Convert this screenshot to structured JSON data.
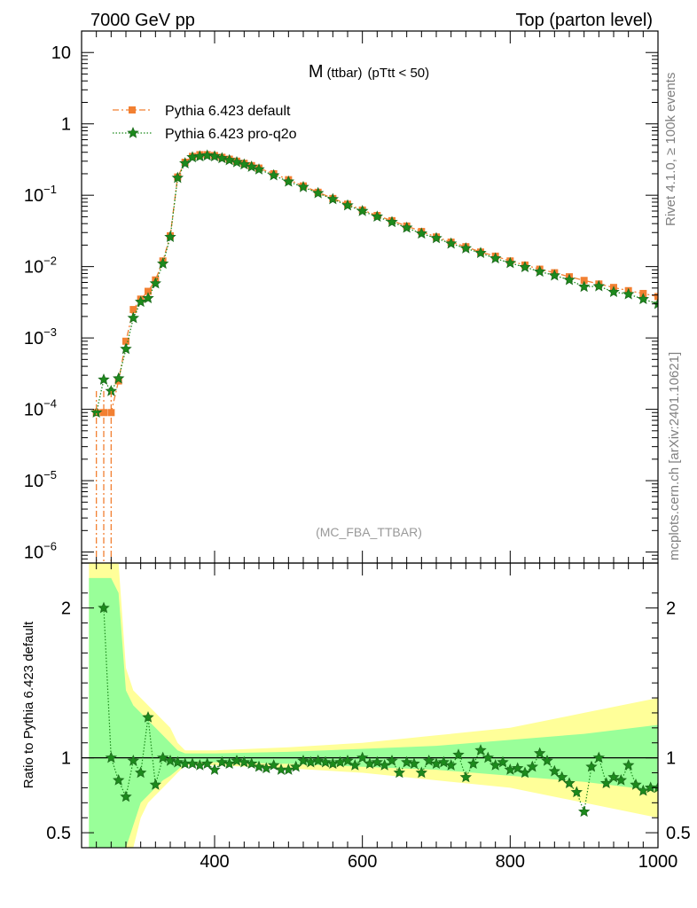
{
  "header": {
    "left": "7000 GeV pp",
    "right": "Top (parton level)"
  },
  "side_labels": {
    "rivet": "Rivet 4.1.0, ≥ 100k events",
    "mcplots": "mcplots.cern.ch [arXiv:2401.10621]"
  },
  "colors": {
    "default": "#f28032",
    "proq2o": "#1c8a1c",
    "band_yellow": "#ffff99",
    "band_green": "#99ff99"
  },
  "chart_data": [
    {
      "type": "line",
      "name": "main",
      "title_main": "M",
      "title_sub": "(ttbar)",
      "title_cut": "(pTtt < 50)",
      "watermark": "(MC_FBA_TTBAR)",
      "yscale": "log",
      "xlim": [
        220,
        1000
      ],
      "ylim": [
        7e-07,
        20
      ],
      "y_ticks": [
        {
          "v": 10,
          "label": "10",
          "exp": ""
        },
        {
          "v": 1,
          "label": "1",
          "exp": ""
        },
        {
          "v": 0.1,
          "label": "10",
          "exp": "−1"
        },
        {
          "v": 0.01,
          "label": "10",
          "exp": "−2"
        },
        {
          "v": 0.001,
          "label": "10",
          "exp": "−3"
        },
        {
          "v": 0.0001,
          "label": "10",
          "exp": "−4"
        },
        {
          "v": 1e-05,
          "label": "10",
          "exp": "−5"
        },
        {
          "v": 1e-06,
          "label": "10",
          "exp": "−6"
        }
      ],
      "legend": {
        "placement": "top-left",
        "entries": [
          "Pythia 6.423 default",
          "Pythia 6.423 pro-q2o"
        ]
      },
      "series": [
        {
          "name": "Pythia 6.423 default",
          "style": "dash-dot, square markers",
          "x": [
            240,
            250,
            260,
            270,
            280,
            290,
            300,
            310,
            320,
            330,
            340,
            350,
            360,
            370,
            380,
            390,
            400,
            410,
            420,
            430,
            440,
            450,
            460,
            480,
            500,
            520,
            540,
            560,
            580,
            600,
            620,
            640,
            660,
            680,
            700,
            720,
            740,
            760,
            780,
            800,
            820,
            840,
            860,
            880,
            900,
            920,
            940,
            960,
            980,
            1000
          ],
          "values": [
            9e-05,
            9e-05,
            9e-05,
            0.00025,
            0.0009,
            0.0025,
            0.0035,
            0.0045,
            0.0065,
            0.012,
            0.027,
            0.18,
            0.29,
            0.35,
            0.37,
            0.37,
            0.36,
            0.34,
            0.32,
            0.3,
            0.28,
            0.26,
            0.24,
            0.2,
            0.165,
            0.135,
            0.11,
            0.09,
            0.075,
            0.062,
            0.052,
            0.044,
            0.037,
            0.031,
            0.026,
            0.022,
            0.019,
            0.016,
            0.014,
            0.012,
            0.0105,
            0.0092,
            0.0082,
            0.0072,
            0.0064,
            0.0057,
            0.0051,
            0.0046,
            0.0042,
            0.0038
          ]
        },
        {
          "name": "Pythia 6.423 pro-q2o",
          "style": "dotted, star markers",
          "x": [
            240,
            250,
            260,
            270,
            280,
            290,
            300,
            310,
            320,
            330,
            340,
            350,
            360,
            370,
            380,
            390,
            400,
            410,
            420,
            430,
            440,
            450,
            460,
            480,
            500,
            520,
            540,
            560,
            580,
            600,
            620,
            640,
            660,
            680,
            700,
            720,
            740,
            760,
            780,
            800,
            820,
            840,
            860,
            880,
            900,
            920,
            940,
            960,
            980,
            1000
          ],
          "values": [
            9e-05,
            0.00026,
            0.00018,
            0.00027,
            0.0007,
            0.0019,
            0.0032,
            0.0036,
            0.0058,
            0.011,
            0.026,
            0.175,
            0.28,
            0.34,
            0.35,
            0.36,
            0.35,
            0.33,
            0.31,
            0.29,
            0.27,
            0.25,
            0.23,
            0.19,
            0.155,
            0.13,
            0.107,
            0.088,
            0.072,
            0.06,
            0.05,
            0.042,
            0.035,
            0.029,
            0.025,
            0.021,
            0.018,
            0.0155,
            0.013,
            0.0112,
            0.0098,
            0.0085,
            0.0075,
            0.0065,
            0.0052,
            0.0053,
            0.0044,
            0.0041,
            0.0035,
            0.003
          ]
        }
      ]
    },
    {
      "type": "line",
      "name": "ratio",
      "ylabel": "Ratio to Pythia 6.423 default",
      "xlim": [
        220,
        1000
      ],
      "ylim": [
        0.4,
        2.3
      ],
      "x_ticks": [
        400,
        600,
        800,
        1000
      ],
      "y_ticks": [
        {
          "v": 0.5,
          "label": "0.5"
        },
        {
          "v": 1,
          "label": "1"
        },
        {
          "v": 2,
          "label": "2"
        }
      ],
      "bands": {
        "x": [
          230,
          240,
          250,
          260,
          270,
          280,
          290,
          300,
          310,
          320,
          330,
          340,
          350,
          360,
          400,
          500,
          600,
          700,
          800,
          900,
          1000
        ],
        "yellow_upper": [
          2.3,
          2.3,
          2.3,
          2.3,
          2.3,
          1.6,
          1.45,
          1.4,
          1.35,
          1.3,
          1.25,
          1.2,
          1.1,
          1.05,
          1.05,
          1.07,
          1.1,
          1.15,
          1.2,
          1.3,
          1.4
        ],
        "yellow_lower": [
          0.4,
          0.4,
          0.4,
          0.4,
          0.4,
          0.4,
          0.4,
          0.6,
          0.7,
          0.75,
          0.8,
          0.85,
          0.9,
          0.95,
          0.95,
          0.93,
          0.9,
          0.85,
          0.8,
          0.7,
          0.6
        ],
        "green_upper": [
          2.2,
          2.2,
          2.2,
          2.2,
          2.1,
          1.45,
          1.35,
          1.3,
          1.25,
          1.2,
          1.15,
          1.1,
          1.05,
          1.03,
          1.03,
          1.04,
          1.06,
          1.08,
          1.12,
          1.16,
          1.22
        ],
        "green_lower": [
          0.4,
          0.4,
          0.4,
          0.4,
          0.4,
          0.4,
          0.55,
          0.7,
          0.75,
          0.8,
          0.85,
          0.88,
          0.92,
          0.97,
          0.97,
          0.96,
          0.94,
          0.92,
          0.88,
          0.84,
          0.78
        ]
      },
      "series": [
        {
          "name": "Pythia 6.423 pro-q2o / default",
          "x": [
            250,
            260,
            270,
            280,
            290,
            300,
            310,
            320,
            330,
            340,
            350,
            360,
            370,
            380,
            390,
            400,
            410,
            420,
            430,
            440,
            450,
            460,
            470,
            480,
            490,
            500,
            510,
            520,
            530,
            540,
            550,
            560,
            570,
            580,
            590,
            600,
            610,
            620,
            630,
            640,
            650,
            660,
            670,
            680,
            690,
            700,
            710,
            720,
            730,
            740,
            750,
            760,
            770,
            780,
            790,
            800,
            810,
            820,
            830,
            840,
            850,
            860,
            870,
            880,
            890,
            900,
            910,
            920,
            930,
            940,
            950,
            960,
            970,
            980,
            990,
            1000
          ],
          "values": [
            2.0,
            1.0,
            0.85,
            0.74,
            0.98,
            0.9,
            1.27,
            0.82,
            1.0,
            0.98,
            0.97,
            0.96,
            0.96,
            0.95,
            0.96,
            0.92,
            0.97,
            0.96,
            0.98,
            0.97,
            0.96,
            0.94,
            0.93,
            0.95,
            0.92,
            0.92,
            0.94,
            0.98,
            0.97,
            0.98,
            0.97,
            0.96,
            0.97,
            0.98,
            0.95,
            1.0,
            0.96,
            0.97,
            0.95,
            0.98,
            0.9,
            0.97,
            0.96,
            0.9,
            0.98,
            0.96,
            0.97,
            0.95,
            1.02,
            0.87,
            0.96,
            1.05,
            1.0,
            0.95,
            0.97,
            0.92,
            0.93,
            0.9,
            0.94,
            1.03,
            0.98,
            0.91,
            0.87,
            0.83,
            0.77,
            0.64,
            0.94,
            1.0,
            0.83,
            0.87,
            0.85,
            0.95,
            0.82,
            0.78,
            0.8,
            0.8
          ]
        }
      ]
    }
  ]
}
